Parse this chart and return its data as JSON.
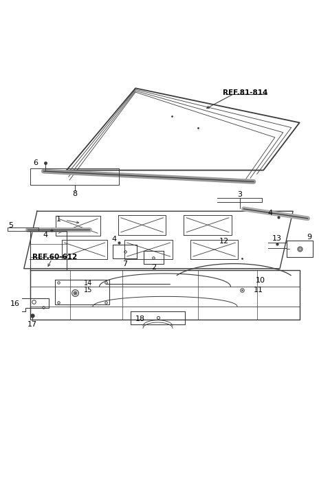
{
  "background_color": "#ffffff",
  "line_color": "#3a3a3a",
  "text_color": "#000000",
  "figsize": [
    4.8,
    7.1
  ],
  "dpi": 100
}
